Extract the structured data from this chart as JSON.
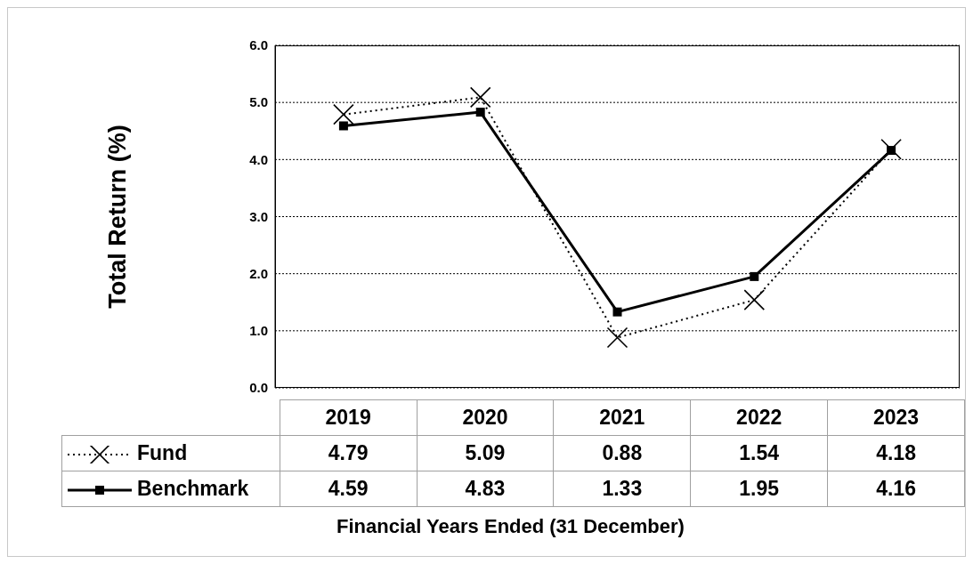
{
  "chart_data": {
    "type": "line",
    "ylabel": "Total Return (%)",
    "xlabel": "Financial  Years Ended (31 December)",
    "categories": [
      "2019",
      "2020",
      "2021",
      "2022",
      "2023"
    ],
    "series": [
      {
        "name": "Fund",
        "color": "#000000",
        "values": [
          4.79,
          5.09,
          0.88,
          1.54,
          4.18
        ],
        "marker": "cross",
        "line_style": "dotted"
      },
      {
        "name": "Benchmark",
        "color": "#000000",
        "values": [
          4.59,
          4.83,
          1.33,
          1.95,
          4.16
        ],
        "marker": "square",
        "line_style": "solid"
      }
    ],
    "ylim": [
      0,
      6
    ],
    "yticks": [
      {
        "value": 0,
        "label": "0.0"
      },
      {
        "value": 1,
        "label": "1.0"
      },
      {
        "value": 2,
        "label": "2.0"
      },
      {
        "value": 3,
        "label": "3.0"
      },
      {
        "value": 4,
        "label": "4.0"
      },
      {
        "value": 5,
        "label": "5.0"
      },
      {
        "value": 6,
        "label": "6.0"
      }
    ],
    "grid": "y",
    "legend": "bottom left",
    "data_labels": true
  }
}
